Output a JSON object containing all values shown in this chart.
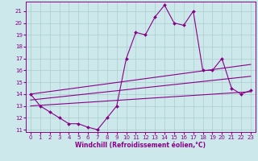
{
  "xlabel": "Windchill (Refroidissement éolien,°C)",
  "bg_color": "#cce8ea",
  "grid_color": "#aacccc",
  "line_color": "#880088",
  "xlim": [
    -0.5,
    23.5
  ],
  "ylim": [
    10.8,
    21.8
  ],
  "yticks": [
    11,
    12,
    13,
    14,
    15,
    16,
    17,
    18,
    19,
    20,
    21
  ],
  "xticks": [
    0,
    1,
    2,
    3,
    4,
    5,
    6,
    7,
    8,
    9,
    10,
    11,
    12,
    13,
    14,
    15,
    16,
    17,
    18,
    19,
    20,
    21,
    22,
    23
  ],
  "series": {
    "main_line": {
      "x": [
        0,
        1,
        2,
        3,
        4,
        5,
        6,
        7,
        8,
        9,
        10,
        11,
        12,
        13,
        14,
        15,
        16,
        17,
        18,
        19,
        20,
        21,
        22,
        23
      ],
      "y": [
        14.0,
        13.0,
        12.5,
        12.0,
        11.5,
        11.5,
        11.2,
        11.0,
        12.0,
        13.0,
        17.0,
        19.2,
        19.0,
        20.5,
        21.5,
        20.0,
        19.8,
        21.0,
        16.0,
        16.0,
        17.0,
        14.5,
        14.0,
        14.3
      ]
    },
    "upper_line": {
      "x": [
        0,
        23
      ],
      "y": [
        14.0,
        16.5
      ]
    },
    "middle_line": {
      "x": [
        0,
        23
      ],
      "y": [
        13.5,
        15.5
      ]
    },
    "lower_line": {
      "x": [
        0,
        23
      ],
      "y": [
        13.0,
        14.2
      ]
    }
  },
  "xlabel_fontsize": 5.5,
  "tick_fontsize": 5,
  "line_width": 0.8,
  "marker_size": 2.0
}
